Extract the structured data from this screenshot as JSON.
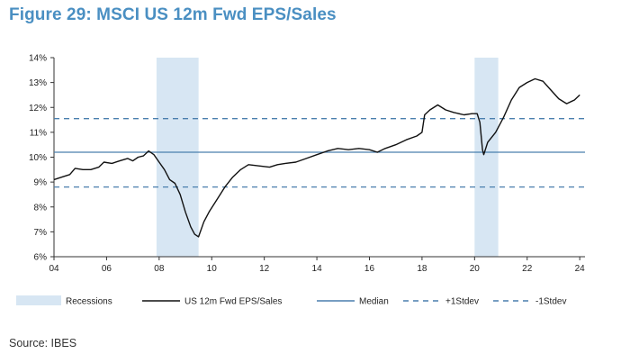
{
  "title": "Figure 29: MSCI US 12m Fwd EPS/Sales",
  "source": "Source: IBES",
  "chart_data": {
    "type": "line",
    "title": "Figure 29: MSCI US 12m Fwd EPS/Sales",
    "xlabel": "",
    "ylabel": "",
    "xlim": [
      2004,
      2024.2
    ],
    "ylim": [
      6,
      14
    ],
    "x_ticks": [
      {
        "value": 2004,
        "label": "04"
      },
      {
        "value": 2006,
        "label": "06"
      },
      {
        "value": 2008,
        "label": "08"
      },
      {
        "value": 2010,
        "label": "10"
      },
      {
        "value": 2012,
        "label": "12"
      },
      {
        "value": 2014,
        "label": "14"
      },
      {
        "value": 2016,
        "label": "16"
      },
      {
        "value": 2018,
        "label": "18"
      },
      {
        "value": 2020,
        "label": "20"
      },
      {
        "value": 2022,
        "label": "22"
      },
      {
        "value": 2024,
        "label": "24"
      }
    ],
    "y_ticks": [
      {
        "value": 6,
        "label": "6%"
      },
      {
        "value": 7,
        "label": "7%"
      },
      {
        "value": 8,
        "label": "8%"
      },
      {
        "value": 9,
        "label": "9%"
      },
      {
        "value": 10,
        "label": "10%"
      },
      {
        "value": 11,
        "label": "11%"
      },
      {
        "value": 12,
        "label": "12%"
      },
      {
        "value": 13,
        "label": "13%"
      },
      {
        "value": 14,
        "label": "14%"
      }
    ],
    "grid": false,
    "legend_position": "bottom",
    "recessions": [
      {
        "start": 2007.9,
        "end": 2009.5
      },
      {
        "start": 2020.0,
        "end": 2020.9
      }
    ],
    "series": [
      {
        "name": "US 12m Fwd EPS/Sales",
        "color": "#111111",
        "points": [
          [
            2004.0,
            9.1
          ],
          [
            2004.3,
            9.2
          ],
          [
            2004.6,
            9.3
          ],
          [
            2004.8,
            9.55
          ],
          [
            2005.1,
            9.5
          ],
          [
            2005.4,
            9.5
          ],
          [
            2005.7,
            9.6
          ],
          [
            2005.9,
            9.8
          ],
          [
            2006.2,
            9.75
          ],
          [
            2006.5,
            9.85
          ],
          [
            2006.8,
            9.95
          ],
          [
            2007.0,
            9.85
          ],
          [
            2007.2,
            10.0
          ],
          [
            2007.4,
            10.05
          ],
          [
            2007.6,
            10.25
          ],
          [
            2007.8,
            10.1
          ],
          [
            2008.0,
            9.8
          ],
          [
            2008.2,
            9.5
          ],
          [
            2008.4,
            9.1
          ],
          [
            2008.6,
            8.95
          ],
          [
            2008.8,
            8.5
          ],
          [
            2009.0,
            7.8
          ],
          [
            2009.2,
            7.2
          ],
          [
            2009.35,
            6.9
          ],
          [
            2009.5,
            6.8
          ],
          [
            2009.7,
            7.4
          ],
          [
            2009.9,
            7.8
          ],
          [
            2010.2,
            8.3
          ],
          [
            2010.5,
            8.8
          ],
          [
            2010.8,
            9.2
          ],
          [
            2011.1,
            9.5
          ],
          [
            2011.4,
            9.7
          ],
          [
            2011.8,
            9.65
          ],
          [
            2012.2,
            9.6
          ],
          [
            2012.5,
            9.7
          ],
          [
            2012.8,
            9.75
          ],
          [
            2013.2,
            9.8
          ],
          [
            2013.6,
            9.95
          ],
          [
            2014.0,
            10.1
          ],
          [
            2014.4,
            10.25
          ],
          [
            2014.8,
            10.35
          ],
          [
            2015.2,
            10.3
          ],
          [
            2015.6,
            10.35
          ],
          [
            2016.0,
            10.3
          ],
          [
            2016.3,
            10.2
          ],
          [
            2016.6,
            10.35
          ],
          [
            2017.0,
            10.5
          ],
          [
            2017.4,
            10.7
          ],
          [
            2017.8,
            10.85
          ],
          [
            2018.0,
            11.0
          ],
          [
            2018.1,
            11.7
          ],
          [
            2018.3,
            11.9
          ],
          [
            2018.6,
            12.1
          ],
          [
            2018.9,
            11.9
          ],
          [
            2019.2,
            11.8
          ],
          [
            2019.6,
            11.7
          ],
          [
            2019.9,
            11.75
          ],
          [
            2020.1,
            11.75
          ],
          [
            2020.2,
            11.4
          ],
          [
            2020.3,
            10.3
          ],
          [
            2020.35,
            10.1
          ],
          [
            2020.5,
            10.6
          ],
          [
            2020.8,
            11.0
          ],
          [
            2021.1,
            11.6
          ],
          [
            2021.4,
            12.3
          ],
          [
            2021.7,
            12.8
          ],
          [
            2022.0,
            13.0
          ],
          [
            2022.3,
            13.15
          ],
          [
            2022.6,
            13.05
          ],
          [
            2022.9,
            12.7
          ],
          [
            2023.2,
            12.35
          ],
          [
            2023.5,
            12.15
          ],
          [
            2023.8,
            12.3
          ],
          [
            2024.0,
            12.5
          ]
        ]
      }
    ],
    "reference_lines": [
      {
        "name": "Median",
        "y": 10.2,
        "style": "solid",
        "color": "#4a7fad"
      },
      {
        "name": "+1Stdev",
        "y": 11.55,
        "style": "dashed",
        "color": "#4a7fad"
      },
      {
        "name": "-1Stdev",
        "y": 8.8,
        "style": "dashed",
        "color": "#4a7fad"
      }
    ],
    "legend": [
      {
        "label": "Recessions",
        "kind": "box"
      },
      {
        "label": "US 12m Fwd EPS/Sales",
        "kind": "line-black"
      },
      {
        "label": "Median",
        "kind": "line-solid"
      },
      {
        "label": "+1Stdev",
        "kind": "line-dashed"
      },
      {
        "label": "-1Stdev",
        "kind": "line-dashed"
      }
    ]
  }
}
